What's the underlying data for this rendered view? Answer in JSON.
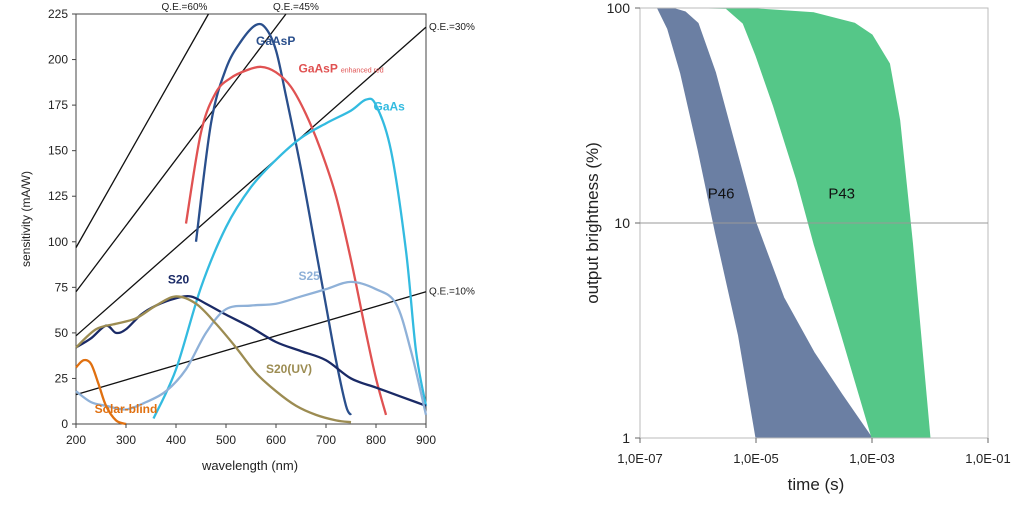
{
  "chart_data": [
    {
      "type": "line",
      "title": "",
      "xlabel": "wavelength (nm)",
      "ylabel": "sensitivity (mA/W)",
      "xlim": [
        200,
        900
      ],
      "ylim": [
        0,
        225
      ],
      "x_ticks": [
        200,
        300,
        400,
        500,
        600,
        700,
        800,
        900
      ],
      "y_ticks": [
        0,
        25,
        50,
        75,
        100,
        125,
        150,
        175,
        200,
        225
      ],
      "grid": false,
      "reference_lines": [
        {
          "label": "Q.E.=60%",
          "qe": 0.6
        },
        {
          "label": "Q.E.=45%",
          "qe": 0.45
        },
        {
          "label": "Q.E.=30%",
          "qe": 0.3
        },
        {
          "label": "Q.E.=10%",
          "qe": 0.1
        }
      ],
      "series": [
        {
          "name": "GaAsP",
          "color": "#2a4f8c",
          "x": [
            440,
            470,
            500,
            530,
            560,
            580,
            600,
            620,
            650,
            680,
            700,
            720,
            740,
            750
          ],
          "y": [
            100,
            165,
            195,
            210,
            219,
            217,
            205,
            180,
            140,
            95,
            65,
            35,
            10,
            5
          ]
        },
        {
          "name": "GaAsP",
          "name_suffix": "enhanced red",
          "color": "#e05252",
          "x": [
            420,
            450,
            480,
            510,
            540,
            570,
            600,
            630,
            660,
            690,
            720,
            750,
            780,
            800,
            820
          ],
          "y": [
            110,
            160,
            182,
            190,
            194,
            196,
            193,
            185,
            170,
            150,
            125,
            90,
            50,
            25,
            5
          ]
        },
        {
          "name": "GaAs",
          "color": "#33bbe0",
          "x": [
            355,
            400,
            450,
            500,
            550,
            600,
            650,
            700,
            750,
            780,
            800,
            830,
            860,
            880,
            900
          ],
          "y": [
            3,
            30,
            75,
            108,
            130,
            145,
            157,
            165,
            172,
            178,
            175,
            150,
            95,
            40,
            10
          ]
        },
        {
          "name": "S20",
          "color": "#1a2a66",
          "x": [
            200,
            230,
            260,
            280,
            300,
            330,
            360,
            400,
            430,
            460,
            500,
            550,
            600,
            650,
            700,
            750,
            800,
            850,
            880,
            900
          ],
          "y": [
            42,
            47,
            54,
            50,
            52,
            60,
            65,
            69,
            70,
            66,
            60,
            53,
            45,
            40,
            35,
            25,
            20,
            15,
            12,
            10
          ]
        },
        {
          "name": "S25",
          "color": "#8fb1d8",
          "x": [
            200,
            230,
            260,
            300,
            340,
            380,
            420,
            460,
            500,
            550,
            600,
            650,
            700,
            750,
            800,
            840,
            870,
            900
          ],
          "y": [
            18,
            12,
            10,
            8,
            12,
            18,
            30,
            50,
            63,
            65,
            66,
            70,
            74,
            78,
            74,
            66,
            40,
            5
          ]
        },
        {
          "name": "S20(UV)",
          "color": "#9c8c52",
          "x": [
            200,
            240,
            280,
            320,
            360,
            400,
            440,
            480,
            520,
            560,
            600,
            640,
            680,
            720,
            750
          ],
          "y": [
            42,
            52,
            55,
            58,
            65,
            70,
            66,
            55,
            42,
            28,
            18,
            10,
            5,
            2,
            1
          ]
        },
        {
          "name": "Solar-blind",
          "color": "#e07010",
          "x": [
            200,
            215,
            230,
            245,
            260,
            280,
            300
          ],
          "y": [
            31,
            35,
            33,
            22,
            10,
            2,
            0
          ]
        }
      ]
    },
    {
      "type": "area",
      "title": "",
      "xlabel": "time (s)",
      "ylabel": "output brightness (%)",
      "x_scale": "log",
      "y_scale": "log",
      "xlim": [
        1e-07,
        0.1
      ],
      "ylim": [
        1,
        100
      ],
      "x_ticks": [
        "1,0E-07",
        "1,0E-05",
        "1,0E-03",
        "1,0E-01"
      ],
      "y_ticks": [
        "1",
        "10",
        "100"
      ],
      "reference_line_y": 10,
      "grid": false,
      "series": [
        {
          "name": "P46",
          "color": "#6b7fa3",
          "upper": {
            "x": [
              2e-07,
              4e-07,
              6e-07,
              1e-06,
              2e-06,
              4e-06,
              1e-05,
              3e-05,
              0.0001,
              0.0003,
              0.001
            ],
            "y": [
              100,
              99,
              96,
              85,
              50,
              25,
              10,
              4.5,
              2.5,
              1.6,
              1
            ]
          },
          "lower": {
            "x": [
              2e-07,
              3e-07,
              5e-07,
              1e-06,
              2e-06,
              5e-06,
              1e-05
            ],
            "y": [
              100,
              80,
              50,
              22,
              9,
              3,
              1
            ]
          }
        },
        {
          "name": "P43",
          "color": "#55c788",
          "upper": {
            "x": [
              1.5e-06,
              1e-05,
              0.0001,
              0.0005,
              0.001,
              0.002,
              0.003,
              0.005,
              0.01
            ],
            "y": [
              100,
              99,
              95,
              85,
              75,
              55,
              30,
              8,
              1
            ]
          },
          "lower": {
            "x": [
              3e-06,
              6e-06,
              1e-05,
              2e-05,
              5e-05,
              0.0001,
              0.0003,
              0.001
            ],
            "y": [
              100,
              85,
              60,
              35,
              16,
              8,
              3,
              1
            ]
          }
        }
      ]
    }
  ]
}
